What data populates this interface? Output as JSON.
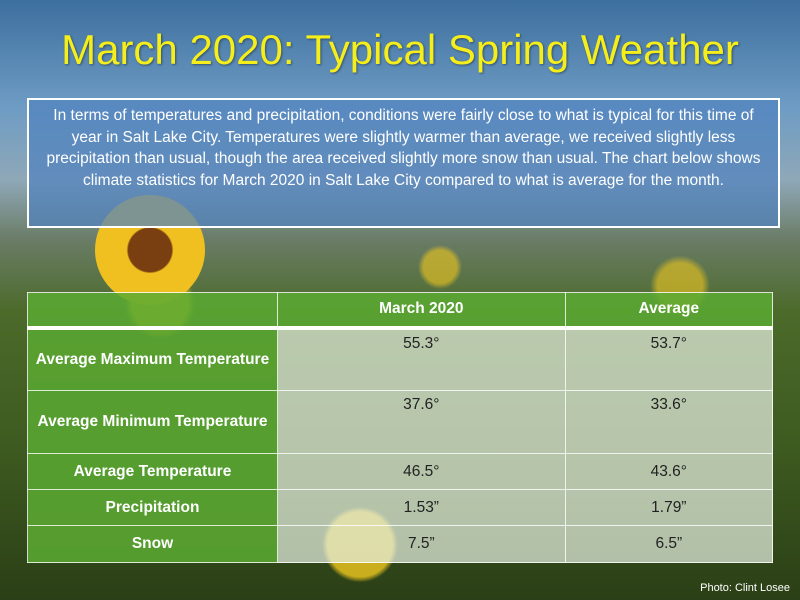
{
  "title": "March 2020: Typical Spring Weather",
  "intro": "In terms of temperatures and precipitation, conditions were fairly close to what is typical for this time of year in Salt Lake City. Temperatures were slightly warmer than average, we received slightly less precipitation than usual, though the area received slightly more snow than usual. The chart below shows climate statistics for March 2020 in Salt Lake City compared to what is average for the month.",
  "table": {
    "headers": [
      "",
      "March 2020",
      "Average"
    ],
    "rows": [
      {
        "label": "Average Maximum Temperature",
        "march": "55.3°",
        "avg": "53.7°"
      },
      {
        "label": "Average Minimum Temperature",
        "march": "37.6°",
        "avg": "33.6°"
      },
      {
        "label": "Average Temperature",
        "march": "46.5°",
        "avg": "43.6°"
      },
      {
        "label": "Precipitation",
        "march": "1.53”",
        "avg": "1.79”"
      },
      {
        "label": "Snow",
        "march": "7.5”",
        "avg": "6.5”"
      }
    ]
  },
  "credit": "Photo:  Clint Losee"
}
